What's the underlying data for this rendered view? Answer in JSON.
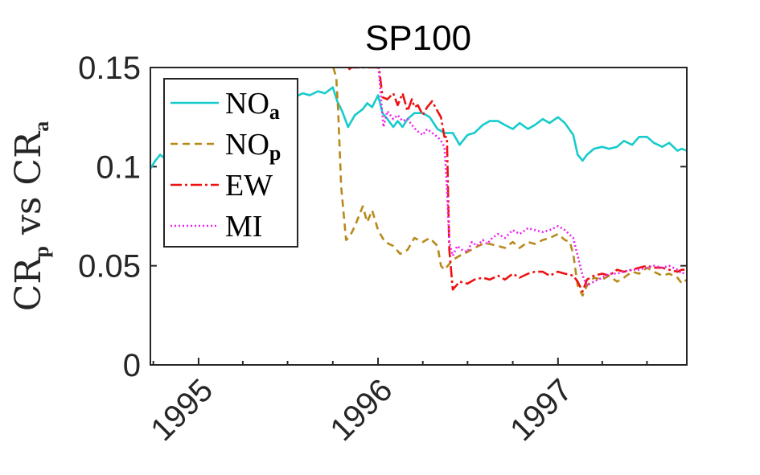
{
  "chart_data": {
    "type": "line",
    "title": "SP100",
    "ylabel": {
      "main1": "CR",
      "sub1": "p",
      "mid": " vs ",
      "main2": "CR",
      "sub2": "a"
    },
    "ylim": [
      0,
      0.15
    ],
    "yticks": [
      0,
      0.05,
      0.1,
      0.15
    ],
    "ytick_labels": [
      "0",
      "0.05",
      "0.1",
      "0.15"
    ],
    "xlim": [
      "1994-09-25",
      "1997-09-20"
    ],
    "xticks": [
      "1995-01-01",
      "1996-01-01",
      "1997-01-01"
    ],
    "xtick_labels": [
      "1995",
      "1996",
      "1997"
    ],
    "xminor": [
      "1994-10-01",
      "1995-04-01",
      "1995-07-01",
      "1995-10-01",
      "1996-04-01",
      "1996-07-01",
      "1996-10-01",
      "1997-04-01",
      "1997-07-01"
    ],
    "grid": false,
    "legend": {
      "position": "top-left",
      "entries": [
        {
          "main": "NO",
          "sub": "a"
        },
        {
          "main": "NO",
          "sub": "p"
        },
        {
          "main": "EW",
          "sub": ""
        },
        {
          "main": "MI",
          "sub": ""
        }
      ]
    },
    "series": [
      {
        "name": "NOa",
        "color": "#17cbcb",
        "dash": "",
        "x": [
          "1994-09-25",
          "1994-10-05",
          "1994-10-15",
          "1994-10-25",
          "1994-11-05",
          "1994-11-20",
          "1994-12-10",
          "1995-01-01",
          "1995-02-01",
          "1995-03-01",
          "1995-04-01",
          "1995-05-01",
          "1995-06-01",
          "1995-06-20",
          "1995-07-01",
          "1995-07-15",
          "1995-08-01",
          "1995-08-15",
          "1995-09-01",
          "1995-09-15",
          "1995-10-01",
          "1995-10-10",
          "1995-10-20",
          "1995-11-01",
          "1995-11-15",
          "1995-12-01",
          "1995-12-10",
          "1995-12-20",
          "1996-01-01",
          "1996-01-10",
          "1996-01-20",
          "1996-02-01",
          "1996-02-10",
          "1996-02-20",
          "1996-03-01",
          "1996-03-15",
          "1996-04-01",
          "1996-04-15",
          "1996-05-01",
          "1996-05-15",
          "1996-06-01",
          "1996-06-15",
          "1996-07-01",
          "1996-07-15",
          "1996-08-01",
          "1996-08-15",
          "1996-09-01",
          "1996-09-15",
          "1996-10-01",
          "1996-10-15",
          "1996-11-01",
          "1996-11-15",
          "1996-12-01",
          "1996-12-15",
          "1997-01-01",
          "1997-01-15",
          "1997-02-01",
          "1997-02-10",
          "1997-02-20",
          "1997-03-01",
          "1997-03-15",
          "1997-04-01",
          "1997-04-15",
          "1997-05-01",
          "1997-05-15",
          "1997-06-01",
          "1997-06-15",
          "1997-07-01",
          "1997-07-15",
          "1997-08-01",
          "1997-08-15",
          "1997-09-01",
          "1997-09-10",
          "1997-09-20"
        ],
        "y": [
          0.099,
          0.103,
          0.106,
          0.104,
          0.101,
          0.104,
          0.108,
          0.112,
          0.117,
          0.121,
          0.124,
          0.127,
          0.131,
          0.133,
          0.132,
          0.135,
          0.137,
          0.136,
          0.138,
          0.137,
          0.14,
          0.133,
          0.128,
          0.12,
          0.126,
          0.129,
          0.132,
          0.13,
          0.136,
          0.127,
          0.124,
          0.12,
          0.123,
          0.12,
          0.124,
          0.127,
          0.127,
          0.125,
          0.119,
          0.117,
          0.117,
          0.111,
          0.116,
          0.117,
          0.121,
          0.123,
          0.123,
          0.121,
          0.119,
          0.122,
          0.119,
          0.121,
          0.124,
          0.122,
          0.125,
          0.122,
          0.116,
          0.106,
          0.103,
          0.106,
          0.109,
          0.11,
          0.109,
          0.11,
          0.113,
          0.111,
          0.115,
          0.115,
          0.112,
          0.11,
          0.112,
          0.108,
          0.109,
          0.108
        ]
      },
      {
        "name": "NOp",
        "color": "#b8891a",
        "dash": "9,6",
        "x": [
          "1995-10-02",
          "1995-10-08",
          "1995-10-12",
          "1995-10-18",
          "1995-10-28",
          "1995-11-05",
          "1995-11-15",
          "1995-12-01",
          "1995-12-10",
          "1995-12-20",
          "1996-01-01",
          "1996-01-15",
          "1996-02-01",
          "1996-02-15",
          "1996-03-01",
          "1996-03-15",
          "1996-04-01",
          "1996-04-15",
          "1996-05-01",
          "1996-05-08",
          "1996-05-15",
          "1996-06-01",
          "1996-06-15",
          "1996-07-01",
          "1996-07-15",
          "1996-08-01",
          "1996-08-15",
          "1996-09-01",
          "1996-09-15",
          "1996-10-01",
          "1996-10-15",
          "1996-11-01",
          "1996-11-15",
          "1996-12-01",
          "1996-12-15",
          "1997-01-01",
          "1997-01-15",
          "1997-01-25",
          "1997-02-01",
          "1997-02-10",
          "1997-02-20",
          "1997-03-01",
          "1997-03-15",
          "1997-04-01",
          "1997-04-15",
          "1997-05-01",
          "1997-05-15",
          "1997-06-01",
          "1997-06-15",
          "1997-07-01",
          "1997-07-15",
          "1997-08-01",
          "1997-08-15",
          "1997-09-01",
          "1997-09-10",
          "1997-09-20"
        ],
        "y": [
          0.15,
          0.145,
          0.128,
          0.09,
          0.063,
          0.065,
          0.07,
          0.08,
          0.072,
          0.078,
          0.068,
          0.062,
          0.06,
          0.056,
          0.058,
          0.064,
          0.062,
          0.064,
          0.06,
          0.05,
          0.048,
          0.053,
          0.055,
          0.057,
          0.059,
          0.061,
          0.061,
          0.06,
          0.059,
          0.062,
          0.059,
          0.062,
          0.061,
          0.063,
          0.064,
          0.066,
          0.063,
          0.062,
          0.056,
          0.04,
          0.035,
          0.04,
          0.044,
          0.043,
          0.045,
          0.042,
          0.044,
          0.047,
          0.046,
          0.049,
          0.047,
          0.045,
          0.046,
          0.044,
          0.041,
          0.043
        ]
      },
      {
        "name": "EW",
        "color": "#ee1111",
        "dash": "14,4,3,4",
        "x": [
          "1995-11-02",
          "1995-11-08",
          "1996-01-03",
          "1996-01-10",
          "1996-01-20",
          "1996-02-01",
          "1996-02-10",
          "1996-02-20",
          "1996-03-01",
          "1996-03-10",
          "1996-03-15",
          "1996-03-22",
          "1996-04-01",
          "1996-04-10",
          "1996-04-20",
          "1996-05-01",
          "1996-05-08",
          "1996-05-15",
          "1996-05-20",
          "1996-05-25",
          "1996-06-01",
          "1996-06-15",
          "1996-07-01",
          "1996-07-15",
          "1996-08-01",
          "1996-08-15",
          "1996-09-01",
          "1996-09-15",
          "1996-10-01",
          "1996-10-15",
          "1996-11-01",
          "1996-11-15",
          "1996-12-01",
          "1996-12-15",
          "1997-01-01",
          "1997-01-15",
          "1997-02-01",
          "1997-02-10",
          "1997-02-20",
          "1997-03-01",
          "1997-03-15",
          "1997-04-01",
          "1997-04-15",
          "1997-05-01",
          "1997-05-15",
          "1997-06-01",
          "1997-06-15",
          "1997-07-01",
          "1997-07-15",
          "1997-08-01",
          "1997-08-15",
          "1997-09-01",
          "1997-09-10",
          "1997-09-20"
        ],
        "y": [
          0.149,
          0.15,
          0.15,
          0.135,
          0.134,
          0.137,
          0.131,
          0.137,
          0.128,
          0.134,
          0.13,
          0.131,
          0.126,
          0.13,
          0.133,
          0.128,
          0.125,
          0.115,
          0.115,
          0.058,
          0.038,
          0.042,
          0.041,
          0.043,
          0.044,
          0.043,
          0.045,
          0.043,
          0.046,
          0.044,
          0.046,
          0.047,
          0.047,
          0.045,
          0.047,
          0.046,
          0.045,
          0.042,
          0.037,
          0.043,
          0.045,
          0.046,
          0.045,
          0.048,
          0.047,
          0.048,
          0.049,
          0.05,
          0.049,
          0.049,
          0.048,
          0.047,
          0.048,
          0.048
        ]
      },
      {
        "name": "MI",
        "color": "#ee22ee",
        "dash": "2,3",
        "x": [
          "1996-01-02",
          "1996-01-06",
          "1996-01-12",
          "1996-01-20",
          "1996-02-01",
          "1996-02-10",
          "1996-02-20",
          "1996-03-01",
          "1996-03-10",
          "1996-03-20",
          "1996-04-01",
          "1996-04-10",
          "1996-04-20",
          "1996-05-01",
          "1996-05-08",
          "1996-05-15",
          "1996-05-20",
          "1996-05-25",
          "1996-06-01",
          "1996-06-10",
          "1996-06-20",
          "1996-07-01",
          "1996-07-10",
          "1996-07-20",
          "1996-08-01",
          "1996-08-10",
          "1996-08-20",
          "1996-09-01",
          "1996-09-15",
          "1996-10-01",
          "1996-10-15",
          "1996-11-01",
          "1996-11-15",
          "1996-12-01",
          "1996-12-15",
          "1997-01-01",
          "1997-01-15",
          "1997-02-01",
          "1997-02-10",
          "1997-02-20",
          "1997-03-01",
          "1997-03-15",
          "1997-04-01",
          "1997-04-15",
          "1997-05-01",
          "1997-05-15",
          "1997-06-01",
          "1997-06-15",
          "1997-07-01",
          "1997-07-15",
          "1997-08-01",
          "1997-08-15",
          "1997-09-01",
          "1997-09-10",
          "1997-09-20"
        ],
        "y": [
          0.15,
          0.138,
          0.12,
          0.128,
          0.124,
          0.126,
          0.123,
          0.124,
          0.121,
          0.118,
          0.116,
          0.119,
          0.117,
          0.115,
          0.113,
          0.11,
          0.09,
          0.062,
          0.055,
          0.06,
          0.058,
          0.057,
          0.062,
          0.06,
          0.063,
          0.061,
          0.064,
          0.066,
          0.064,
          0.068,
          0.066,
          0.069,
          0.068,
          0.067,
          0.068,
          0.07,
          0.068,
          0.064,
          0.055,
          0.045,
          0.04,
          0.042,
          0.044,
          0.046,
          0.046,
          0.047,
          0.048,
          0.048,
          0.049,
          0.05,
          0.049,
          0.05,
          0.048,
          0.046,
          0.047
        ]
      }
    ]
  }
}
